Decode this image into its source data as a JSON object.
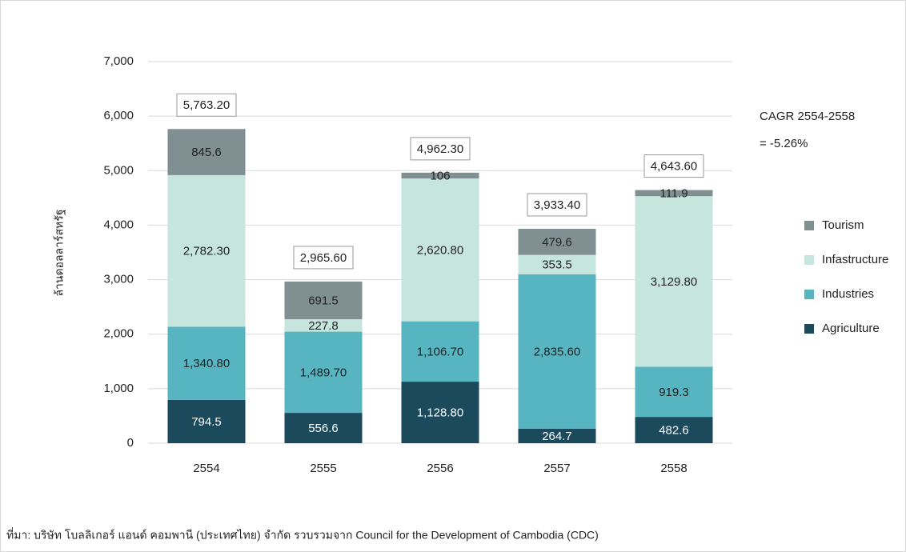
{
  "chart_data": {
    "type": "stacked_bar",
    "y_label": "ล้านดอลลาร์สหรัฐ",
    "categories": [
      "2554",
      "2555",
      "2556",
      "2557",
      "2558"
    ],
    "series": [
      {
        "name": "Agriculture",
        "color": "#1b4a5c",
        "values": [
          794.5,
          556.6,
          1128.8,
          264.7,
          482.6
        ],
        "value_labels": [
          "794.5",
          "556.6",
          "1,128.80",
          "264.7",
          "482.6"
        ]
      },
      {
        "name": "Industries",
        "color": "#57b5c1",
        "values": [
          1340.8,
          1489.7,
          1106.7,
          2835.6,
          919.3
        ],
        "value_labels": [
          "1,340.80",
          "1,489.70",
          "1,106.70",
          "2,835.60",
          "919.3"
        ]
      },
      {
        "name": "Infastructure",
        "color": "#c6e5dc",
        "values": [
          2782.3,
          227.8,
          2620.8,
          353.5,
          3129.8
        ],
        "value_labels": [
          "2,782.30",
          "227.8",
          "2,620.80",
          "353.5",
          "3,129.80"
        ]
      },
      {
        "name": "Tourism",
        "color": "#7f8f92",
        "values": [
          845.6,
          691.5,
          106,
          479.6,
          111.9
        ],
        "value_labels": [
          "845.6",
          "691.5",
          "106",
          "479.6",
          "111.9"
        ]
      }
    ],
    "totals": [
      5763.2,
      2965.6,
      4962.3,
      3933.4,
      4643.6
    ],
    "total_labels": [
      "5,763.20",
      "2,965.60",
      "4,962.30",
      "3,933.40",
      "4,643.60"
    ],
    "ylim": [
      0,
      7000
    ],
    "yticks": [
      0,
      {
        "value": 1000,
        "label": "1,000"
      },
      {
        "value": 2000,
        "label": "2,000"
      },
      {
        "value": 3000,
        "label": "3,000"
      },
      {
        "value": 4000,
        "label": "4,000"
      },
      {
        "value": 5000,
        "label": "5,000"
      },
      {
        "value": 6000,
        "label": "6,000"
      },
      {
        "value": 7000,
        "label": "7,000"
      }
    ],
    "grid": true,
    "legend": "right",
    "annotations": [
      "CAGR 2554-2558",
      "= -5.26%"
    ],
    "source": "ที่มา: บริษัท โบลลิเกอร์ แอนด์ คอมพานี (ประเทศไทย) จำกัด รวบรวมจาก Council for the Development of Cambodia (CDC)"
  }
}
